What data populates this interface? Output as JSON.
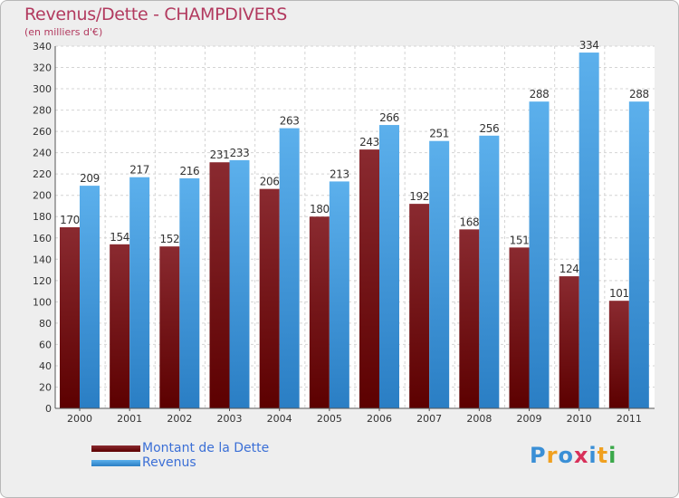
{
  "title": "Revenus/Dette - CHAMPDIVERS",
  "subtitle": "(en milliers d'€)",
  "chart_data": {
    "type": "bar",
    "categories": [
      "2000",
      "2001",
      "2002",
      "2003",
      "2004",
      "2005",
      "2006",
      "2007",
      "2008",
      "2009",
      "2010",
      "2011"
    ],
    "series": [
      {
        "name": "Montant de la Dette",
        "color": "#7a1a1e",
        "values": [
          170,
          154,
          152,
          231,
          206,
          180,
          243,
          192,
          168,
          151,
          124,
          101
        ]
      },
      {
        "name": "Revenus",
        "color": "#4aa2e4",
        "values": [
          209,
          217,
          216,
          233,
          263,
          213,
          266,
          251,
          256,
          288,
          334,
          288
        ]
      }
    ],
    "ylim": [
      0,
      340
    ],
    "yticks": [
      0,
      20,
      40,
      60,
      80,
      100,
      120,
      140,
      160,
      180,
      200,
      220,
      240,
      260,
      280,
      300,
      320,
      340
    ],
    "grid": true,
    "legend_position": "bottom-left"
  },
  "legend": {
    "debt_label": "Montant de la Dette",
    "revenue_label": "Revenus"
  },
  "logo": {
    "letters": [
      "P",
      "r",
      "o",
      "x",
      "i",
      "t",
      "i"
    ],
    "colors": [
      "#3a8fd6",
      "#f0a020",
      "#3a8fd6",
      "#d8305a",
      "#3a8fd6",
      "#f0a020",
      "#3aa84a"
    ]
  }
}
